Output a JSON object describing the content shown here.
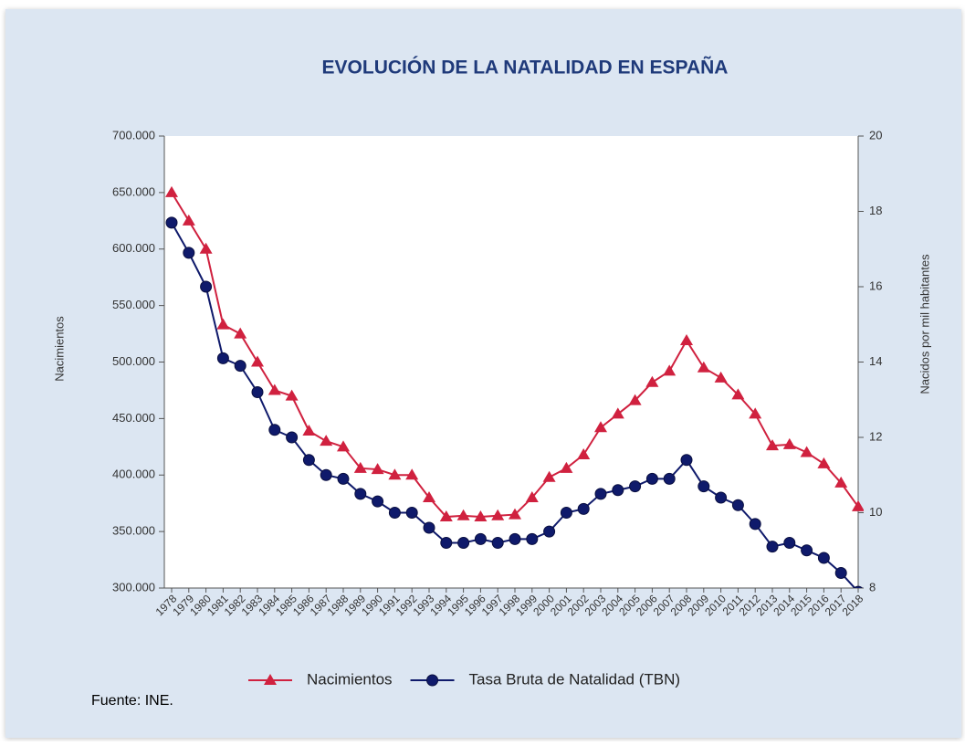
{
  "chart_data": {
    "type": "line",
    "title": "EVOLUCIÓN DE LA NATALIDAD EN ESPAÑA",
    "ylabel": "Nacimientos",
    "y2label": "Nacidos por mil habitantes",
    "source": "Fuente: INE.",
    "categories": [
      "1978",
      "1979",
      "1980",
      "1981",
      "1982",
      "1983",
      "1984",
      "1985",
      "1986",
      "1987",
      "1988",
      "1989",
      "1990",
      "1991",
      "1992",
      "1993",
      "1994",
      "1995",
      "1996",
      "1997",
      "1998",
      "1999",
      "2000",
      "2001",
      "2002",
      "2003",
      "2004",
      "2005",
      "2006",
      "2007",
      "2008",
      "2009",
      "2010",
      "2011",
      "2012",
      "2013",
      "2014",
      "2015",
      "2016",
      "2017",
      "2018"
    ],
    "ylim": [
      300000,
      700000
    ],
    "yticks": [
      {
        "value": 300000,
        "label": "300.000"
      },
      {
        "value": 350000,
        "label": "350.000"
      },
      {
        "value": 400000,
        "label": "400.000"
      },
      {
        "value": 450000,
        "label": "450.000"
      },
      {
        "value": 500000,
        "label": "500.000"
      },
      {
        "value": 550000,
        "label": "550.000"
      },
      {
        "value": 600000,
        "label": "600.000"
      },
      {
        "value": 650000,
        "label": "650.000"
      },
      {
        "value": 700000,
        "label": "700.000"
      }
    ],
    "y2lim": [
      8,
      20
    ],
    "y2ticks": [
      8,
      10,
      12,
      14,
      16,
      18,
      20
    ],
    "legend": "bottom",
    "series": [
      {
        "name": "Nacimientos",
        "color": "#d0213f",
        "marker": "triangle",
        "values": [
          650000,
          625000,
          600000,
          533000,
          525000,
          500000,
          475000,
          470000,
          439000,
          430000,
          425000,
          406000,
          405000,
          400000,
          400000,
          380000,
          363000,
          364000,
          363000,
          364000,
          365000,
          380000,
          398000,
          406000,
          418000,
          442000,
          454000,
          466000,
          482000,
          492000,
          519000,
          495000,
          486000,
          471000,
          454000,
          426000,
          427000,
          420000,
          410000,
          393000,
          372000
        ]
      },
      {
        "name": "Tasa Bruta de Natalidad (TBN)",
        "color": "#0f1a6b",
        "marker": "circle",
        "axis": "y2",
        "values": [
          17.7,
          16.9,
          16.0,
          14.1,
          13.9,
          13.2,
          12.2,
          12.0,
          11.4,
          11.0,
          10.9,
          10.5,
          10.3,
          10.0,
          10.0,
          9.6,
          9.2,
          9.2,
          9.3,
          9.2,
          9.3,
          9.3,
          9.5,
          10.0,
          10.1,
          10.5,
          10.6,
          10.7,
          10.9,
          10.9,
          11.4,
          10.7,
          10.4,
          10.2,
          9.7,
          9.1,
          9.2,
          9.0,
          8.8,
          8.4,
          7.9
        ]
      }
    ]
  }
}
